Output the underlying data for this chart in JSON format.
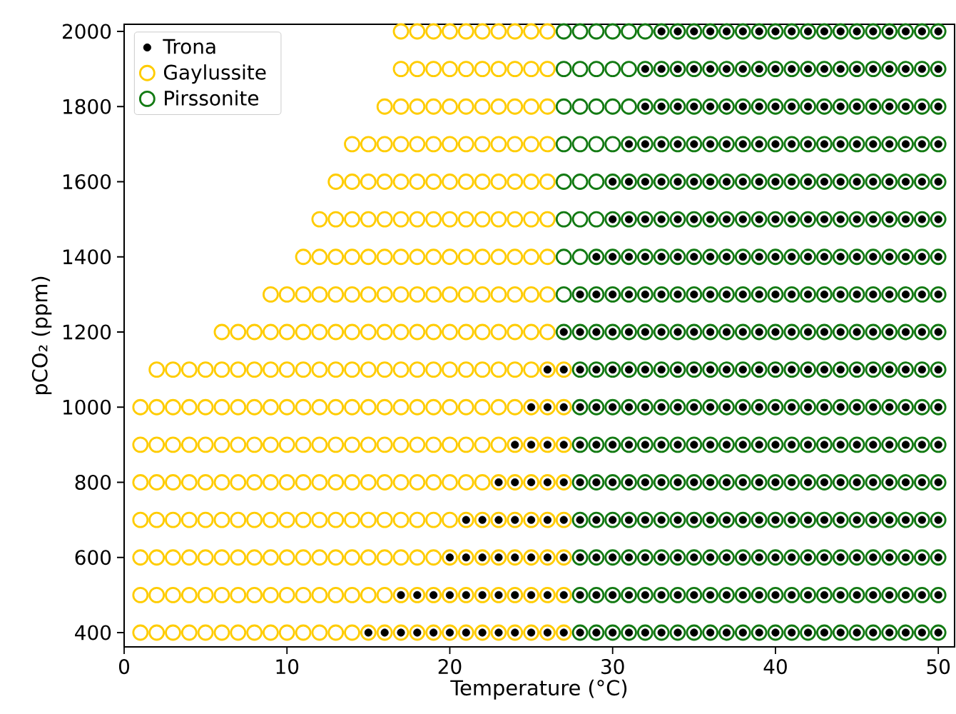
{
  "chart_data": {
    "type": "scatter",
    "xlabel": "Temperature (°C)",
    "ylabel": "pCO₂ (ppm)",
    "xlim": [
      0,
      51
    ],
    "ylim": [
      362,
      2019
    ],
    "xticks": [
      0,
      10,
      20,
      30,
      40,
      50
    ],
    "yticks": [
      400,
      600,
      800,
      1000,
      1200,
      1400,
      1600,
      1800,
      2000
    ],
    "legend": "top left",
    "marker": "circle",
    "series": [
      {
        "name": "Trona",
        "color": "#000000",
        "x": [
          15,
          16,
          17,
          18,
          19,
          20,
          21,
          22,
          23,
          24,
          25,
          26,
          27,
          28,
          29,
          30,
          31,
          32,
          33,
          34,
          35,
          36,
          37,
          38,
          39,
          40,
          41,
          42,
          43,
          44,
          45,
          46,
          47,
          48,
          49,
          50,
          17,
          18,
          19,
          20,
          21,
          22,
          23,
          24,
          25,
          26,
          27,
          28,
          29,
          30,
          31,
          32,
          33,
          34,
          35,
          36,
          37,
          38,
          39,
          40,
          41,
          42,
          43,
          44,
          45,
          46,
          47,
          48,
          49,
          50,
          20,
          21,
          22,
          23,
          24,
          25,
          26,
          27,
          28,
          29,
          30,
          31,
          32,
          33,
          34,
          35,
          36,
          37,
          38,
          39,
          40,
          41,
          42,
          43,
          44,
          45,
          46,
          47,
          48,
          49,
          50,
          21,
          22,
          23,
          24,
          25,
          26,
          27,
          28,
          29,
          30,
          31,
          32,
          33,
          34,
          35,
          36,
          37,
          38,
          39,
          40,
          41,
          42,
          43,
          44,
          45,
          46,
          47,
          48,
          49,
          50,
          23,
          24,
          25,
          26,
          27,
          28,
          29,
          30,
          31,
          32,
          33,
          34,
          35,
          36,
          37,
          38,
          39,
          40,
          41,
          42,
          43,
          44,
          45,
          46,
          47,
          48,
          49,
          50,
          24,
          25,
          26,
          27,
          28,
          29,
          30,
          31,
          32,
          33,
          34,
          35,
          36,
          37,
          38,
          39,
          40,
          41,
          42,
          43,
          44,
          45,
          46,
          47,
          48,
          49,
          50,
          25,
          26,
          27,
          28,
          29,
          30,
          31,
          32,
          33,
          34,
          35,
          36,
          37,
          38,
          39,
          40,
          41,
          42,
          43,
          44,
          45,
          46,
          47,
          48,
          49,
          50,
          26,
          27,
          28,
          29,
          30,
          31,
          32,
          33,
          34,
          35,
          36,
          37,
          38,
          39,
          40,
          41,
          42,
          43,
          44,
          45,
          46,
          47,
          48,
          49,
          50,
          27,
          28,
          29,
          30,
          31,
          32,
          33,
          34,
          35,
          36,
          37,
          38,
          39,
          40,
          41,
          42,
          43,
          44,
          45,
          46,
          47,
          48,
          49,
          50,
          28,
          29,
          30,
          31,
          32,
          33,
          34,
          35,
          36,
          37,
          38,
          39,
          40,
          41,
          42,
          43,
          44,
          45,
          46,
          47,
          48,
          49,
          50,
          29,
          30,
          31,
          32,
          33,
          34,
          35,
          36,
          37,
          38,
          39,
          40,
          41,
          42,
          43,
          44,
          45,
          46,
          47,
          48,
          49,
          50,
          30,
          31,
          32,
          33,
          34,
          35,
          36,
          37,
          38,
          39,
          40,
          41,
          42,
          43,
          44,
          45,
          46,
          47,
          48,
          49,
          50,
          30,
          31,
          32,
          33,
          34,
          35,
          36,
          37,
          38,
          39,
          40,
          41,
          42,
          43,
          44,
          45,
          46,
          47,
          48,
          49,
          50,
          31,
          32,
          33,
          34,
          35,
          36,
          37,
          38,
          39,
          40,
          41,
          42,
          43,
          44,
          45,
          46,
          47,
          48,
          49,
          50,
          32,
          33,
          34,
          35,
          36,
          37,
          38,
          39,
          40,
          41,
          42,
          43,
          44,
          45,
          46,
          47,
          48,
          49,
          50,
          32,
          33,
          34,
          35,
          36,
          37,
          38,
          39,
          40,
          41,
          42,
          43,
          44,
          45,
          46,
          47,
          48,
          49,
          50,
          33,
          34,
          35,
          36,
          37,
          38,
          39,
          40,
          41,
          42,
          43,
          44,
          45,
          46,
          47,
          48,
          49,
          50
        ],
        "values": [
          400,
          400,
          400,
          400,
          400,
          400,
          400,
          400,
          400,
          400,
          400,
          400,
          400,
          400,
          400,
          400,
          400,
          400,
          400,
          400,
          400,
          400,
          400,
          400,
          400,
          400,
          400,
          400,
          400,
          400,
          400,
          400,
          400,
          400,
          400,
          400,
          500,
          500,
          500,
          500,
          500,
          500,
          500,
          500,
          500,
          500,
          500,
          500,
          500,
          500,
          500,
          500,
          500,
          500,
          500,
          500,
          500,
          500,
          500,
          500,
          500,
          500,
          500,
          500,
          500,
          500,
          500,
          500,
          500,
          500,
          600,
          600,
          600,
          600,
          600,
          600,
          600,
          600,
          600,
          600,
          600,
          600,
          600,
          600,
          600,
          600,
          600,
          600,
          600,
          600,
          600,
          600,
          600,
          600,
          600,
          600,
          600,
          600,
          600,
          600,
          600,
          700,
          700,
          700,
          700,
          700,
          700,
          700,
          700,
          700,
          700,
          700,
          700,
          700,
          700,
          700,
          700,
          700,
          700,
          700,
          700,
          700,
          700,
          700,
          700,
          700,
          700,
          700,
          700,
          700,
          700,
          800,
          800,
          800,
          800,
          800,
          800,
          800,
          800,
          800,
          800,
          800,
          800,
          800,
          800,
          800,
          800,
          800,
          800,
          800,
          800,
          800,
          800,
          800,
          800,
          800,
          800,
          800,
          800,
          900,
          900,
          900,
          900,
          900,
          900,
          900,
          900,
          900,
          900,
          900,
          900,
          900,
          900,
          900,
          900,
          900,
          900,
          900,
          900,
          900,
          900,
          900,
          900,
          900,
          900,
          900,
          1000,
          1000,
          1000,
          1000,
          1000,
          1000,
          1000,
          1000,
          1000,
          1000,
          1000,
          1000,
          1000,
          1000,
          1000,
          1000,
          1000,
          1000,
          1000,
          1000,
          1000,
          1000,
          1000,
          1000,
          1000,
          1000,
          1100,
          1100,
          1100,
          1100,
          1100,
          1100,
          1100,
          1100,
          1100,
          1100,
          1100,
          1100,
          1100,
          1100,
          1100,
          1100,
          1100,
          1100,
          1100,
          1100,
          1100,
          1100,
          1100,
          1100,
          1100,
          1200,
          1200,
          1200,
          1200,
          1200,
          1200,
          1200,
          1200,
          1200,
          1200,
          1200,
          1200,
          1200,
          1200,
          1200,
          1200,
          1200,
          1200,
          1200,
          1200,
          1200,
          1200,
          1200,
          1200,
          1300,
          1300,
          1300,
          1300,
          1300,
          1300,
          1300,
          1300,
          1300,
          1300,
          1300,
          1300,
          1300,
          1300,
          1300,
          1300,
          1300,
          1300,
          1300,
          1300,
          1300,
          1300,
          1300,
          1400,
          1400,
          1400,
          1400,
          1400,
          1400,
          1400,
          1400,
          1400,
          1400,
          1400,
          1400,
          1400,
          1400,
          1400,
          1400,
          1400,
          1400,
          1400,
          1400,
          1400,
          1400,
          1500,
          1500,
          1500,
          1500,
          1500,
          1500,
          1500,
          1500,
          1500,
          1500,
          1500,
          1500,
          1500,
          1500,
          1500,
          1500,
          1500,
          1500,
          1500,
          1500,
          1500,
          1600,
          1600,
          1600,
          1600,
          1600,
          1600,
          1600,
          1600,
          1600,
          1600,
          1600,
          1600,
          1600,
          1600,
          1600,
          1600,
          1600,
          1600,
          1600,
          1600,
          1600,
          1700,
          1700,
          1700,
          1700,
          1700,
          1700,
          1700,
          1700,
          1700,
          1700,
          1700,
          1700,
          1700,
          1700,
          1700,
          1700,
          1700,
          1700,
          1700,
          1700,
          1800,
          1800,
          1800,
          1800,
          1800,
          1800,
          1800,
          1800,
          1800,
          1800,
          1800,
          1800,
          1800,
          1800,
          1800,
          1800,
          1800,
          1800,
          1800,
          1900,
          1900,
          1900,
          1900,
          1900,
          1900,
          1900,
          1900,
          1900,
          1900,
          1900,
          1900,
          1900,
          1900,
          1900,
          1900,
          1900,
          1900,
          1900,
          2000,
          2000,
          2000,
          2000,
          2000,
          2000,
          2000,
          2000,
          2000,
          2000,
          2000,
          2000,
          2000,
          2000,
          2000,
          2000,
          2000,
          2000
        ]
      },
      {
        "name": "Gaylussite",
        "color": "#ffcc00",
        "x": [
          1,
          2,
          3,
          4,
          5,
          6,
          7,
          8,
          9,
          10,
          11,
          12,
          13,
          14,
          15,
          16,
          17,
          18,
          19,
          20,
          21,
          22,
          23,
          24,
          25,
          26,
          27,
          1,
          2,
          3,
          4,
          5,
          6,
          7,
          8,
          9,
          10,
          11,
          12,
          13,
          14,
          15,
          16,
          17,
          18,
          19,
          20,
          21,
          22,
          23,
          24,
          25,
          26,
          27,
          1,
          2,
          3,
          4,
          5,
          6,
          7,
          8,
          9,
          10,
          11,
          12,
          13,
          14,
          15,
          16,
          17,
          18,
          19,
          20,
          21,
          22,
          23,
          24,
          25,
          26,
          27,
          1,
          2,
          3,
          4,
          5,
          6,
          7,
          8,
          9,
          10,
          11,
          12,
          13,
          14,
          15,
          16,
          17,
          18,
          19,
          20,
          21,
          22,
          23,
          24,
          25,
          26,
          27,
          1,
          2,
          3,
          4,
          5,
          6,
          7,
          8,
          9,
          10,
          11,
          12,
          13,
          14,
          15,
          16,
          17,
          18,
          19,
          20,
          21,
          22,
          23,
          24,
          25,
          26,
          27,
          1,
          2,
          3,
          4,
          5,
          6,
          7,
          8,
          9,
          10,
          11,
          12,
          13,
          14,
          15,
          16,
          17,
          18,
          19,
          20,
          21,
          22,
          23,
          24,
          25,
          26,
          27,
          1,
          2,
          3,
          4,
          5,
          6,
          7,
          8,
          9,
          10,
          11,
          12,
          13,
          14,
          15,
          16,
          17,
          18,
          19,
          20,
          21,
          22,
          23,
          24,
          25,
          26,
          27,
          2,
          3,
          4,
          5,
          6,
          7,
          8,
          9,
          10,
          11,
          12,
          13,
          14,
          15,
          16,
          17,
          18,
          19,
          20,
          21,
          22,
          23,
          24,
          25,
          26,
          27,
          6,
          7,
          8,
          9,
          10,
          11,
          12,
          13,
          14,
          15,
          16,
          17,
          18,
          19,
          20,
          21,
          22,
          23,
          24,
          25,
          26,
          9,
          10,
          11,
          12,
          13,
          14,
          15,
          16,
          17,
          18,
          19,
          20,
          21,
          22,
          23,
          24,
          25,
          26,
          11,
          12,
          13,
          14,
          15,
          16,
          17,
          18,
          19,
          20,
          21,
          22,
          23,
          24,
          25,
          26,
          12,
          13,
          14,
          15,
          16,
          17,
          18,
          19,
          20,
          21,
          22,
          23,
          24,
          25,
          26,
          13,
          14,
          15,
          16,
          17,
          18,
          19,
          20,
          21,
          22,
          23,
          24,
          25,
          26,
          14,
          15,
          16,
          17,
          18,
          19,
          20,
          21,
          22,
          23,
          24,
          25,
          26,
          16,
          17,
          18,
          19,
          20,
          21,
          22,
          23,
          24,
          25,
          26,
          17,
          18,
          19,
          20,
          21,
          22,
          23,
          24,
          25,
          26,
          17,
          18,
          19,
          20,
          21,
          22,
          23,
          24,
          25,
          26
        ],
        "values": [
          400,
          400,
          400,
          400,
          400,
          400,
          400,
          400,
          400,
          400,
          400,
          400,
          400,
          400,
          400,
          400,
          400,
          400,
          400,
          400,
          400,
          400,
          400,
          400,
          400,
          400,
          400,
          500,
          500,
          500,
          500,
          500,
          500,
          500,
          500,
          500,
          500,
          500,
          500,
          500,
          500,
          500,
          500,
          500,
          500,
          500,
          500,
          500,
          500,
          500,
          500,
          500,
          500,
          500,
          600,
          600,
          600,
          600,
          600,
          600,
          600,
          600,
          600,
          600,
          600,
          600,
          600,
          600,
          600,
          600,
          600,
          600,
          600,
          600,
          600,
          600,
          600,
          600,
          600,
          600,
          600,
          700,
          700,
          700,
          700,
          700,
          700,
          700,
          700,
          700,
          700,
          700,
          700,
          700,
          700,
          700,
          700,
          700,
          700,
          700,
          700,
          700,
          700,
          700,
          700,
          700,
          700,
          700,
          800,
          800,
          800,
          800,
          800,
          800,
          800,
          800,
          800,
          800,
          800,
          800,
          800,
          800,
          800,
          800,
          800,
          800,
          800,
          800,
          800,
          800,
          800,
          800,
          800,
          800,
          800,
          900,
          900,
          900,
          900,
          900,
          900,
          900,
          900,
          900,
          900,
          900,
          900,
          900,
          900,
          900,
          900,
          900,
          900,
          900,
          900,
          900,
          900,
          900,
          900,
          900,
          900,
          900,
          1000,
          1000,
          1000,
          1000,
          1000,
          1000,
          1000,
          1000,
          1000,
          1000,
          1000,
          1000,
          1000,
          1000,
          1000,
          1000,
          1000,
          1000,
          1000,
          1000,
          1000,
          1000,
          1000,
          1000,
          1000,
          1000,
          1000,
          1100,
          1100,
          1100,
          1100,
          1100,
          1100,
          1100,
          1100,
          1100,
          1100,
          1100,
          1100,
          1100,
          1100,
          1100,
          1100,
          1100,
          1100,
          1100,
          1100,
          1100,
          1100,
          1100,
          1100,
          1100,
          1100,
          1200,
          1200,
          1200,
          1200,
          1200,
          1200,
          1200,
          1200,
          1200,
          1200,
          1200,
          1200,
          1200,
          1200,
          1200,
          1200,
          1200,
          1200,
          1200,
          1200,
          1200,
          1300,
          1300,
          1300,
          1300,
          1300,
          1300,
          1300,
          1300,
          1300,
          1300,
          1300,
          1300,
          1300,
          1300,
          1300,
          1300,
          1300,
          1300,
          1400,
          1400,
          1400,
          1400,
          1400,
          1400,
          1400,
          1400,
          1400,
          1400,
          1400,
          1400,
          1400,
          1400,
          1400,
          1400,
          1500,
          1500,
          1500,
          1500,
          1500,
          1500,
          1500,
          1500,
          1500,
          1500,
          1500,
          1500,
          1500,
          1500,
          1500,
          1600,
          1600,
          1600,
          1600,
          1600,
          1600,
          1600,
          1600,
          1600,
          1600,
          1600,
          1600,
          1600,
          1600,
          1700,
          1700,
          1700,
          1700,
          1700,
          1700,
          1700,
          1700,
          1700,
          1700,
          1700,
          1700,
          1700,
          1800,
          1800,
          1800,
          1800,
          1800,
          1800,
          1800,
          1800,
          1800,
          1800,
          1800,
          1900,
          1900,
          1900,
          1900,
          1900,
          1900,
          1900,
          1900,
          1900,
          1900,
          2000,
          2000,
          2000,
          2000,
          2000,
          2000,
          2000,
          2000,
          2000,
          2000
        ]
      },
      {
        "name": "Pirssonite",
        "color": "#137a13",
        "x": [
          28,
          29,
          30,
          31,
          32,
          33,
          34,
          35,
          36,
          37,
          38,
          39,
          40,
          41,
          42,
          43,
          44,
          45,
          46,
          47,
          48,
          49,
          50,
          28,
          29,
          30,
          31,
          32,
          33,
          34,
          35,
          36,
          37,
          38,
          39,
          40,
          41,
          42,
          43,
          44,
          45,
          46,
          47,
          48,
          49,
          50,
          28,
          29,
          30,
          31,
          32,
          33,
          34,
          35,
          36,
          37,
          38,
          39,
          40,
          41,
          42,
          43,
          44,
          45,
          46,
          47,
          48,
          49,
          50,
          28,
          29,
          30,
          31,
          32,
          33,
          34,
          35,
          36,
          37,
          38,
          39,
          40,
          41,
          42,
          43,
          44,
          45,
          46,
          47,
          48,
          49,
          50,
          28,
          29,
          30,
          31,
          32,
          33,
          34,
          35,
          36,
          37,
          38,
          39,
          40,
          41,
          42,
          43,
          44,
          45,
          46,
          47,
          48,
          49,
          50,
          28,
          29,
          30,
          31,
          32,
          33,
          34,
          35,
          36,
          37,
          38,
          39,
          40,
          41,
          42,
          43,
          44,
          45,
          46,
          47,
          48,
          49,
          50,
          28,
          29,
          30,
          31,
          32,
          33,
          34,
          35,
          36,
          37,
          38,
          39,
          40,
          41,
          42,
          43,
          44,
          45,
          46,
          47,
          48,
          49,
          50,
          28,
          29,
          30,
          31,
          32,
          33,
          34,
          35,
          36,
          37,
          38,
          39,
          40,
          41,
          42,
          43,
          44,
          45,
          46,
          47,
          48,
          49,
          50,
          27,
          28,
          29,
          30,
          31,
          32,
          33,
          34,
          35,
          36,
          37,
          38,
          39,
          40,
          41,
          42,
          43,
          44,
          45,
          46,
          47,
          48,
          49,
          50,
          27,
          28,
          29,
          30,
          31,
          32,
          33,
          34,
          35,
          36,
          37,
          38,
          39,
          40,
          41,
          42,
          43,
          44,
          45,
          46,
          47,
          48,
          49,
          50,
          27,
          28,
          29,
          30,
          31,
          32,
          33,
          34,
          35,
          36,
          37,
          38,
          39,
          40,
          41,
          42,
          43,
          44,
          45,
          46,
          47,
          48,
          49,
          50,
          27,
          28,
          29,
          30,
          31,
          32,
          33,
          34,
          35,
          36,
          37,
          38,
          39,
          40,
          41,
          42,
          43,
          44,
          45,
          46,
          47,
          48,
          49,
          50,
          27,
          28,
          29,
          30,
          31,
          32,
          33,
          34,
          35,
          36,
          37,
          38,
          39,
          40,
          41,
          42,
          43,
          44,
          45,
          46,
          47,
          48,
          49,
          50,
          27,
          28,
          29,
          30,
          31,
          32,
          33,
          34,
          35,
          36,
          37,
          38,
          39,
          40,
          41,
          42,
          43,
          44,
          45,
          46,
          47,
          48,
          49,
          50,
          27,
          28,
          29,
          30,
          31,
          32,
          33,
          34,
          35,
          36,
          37,
          38,
          39,
          40,
          41,
          42,
          43,
          44,
          45,
          46,
          47,
          48,
          49,
          50,
          27,
          28,
          29,
          30,
          31,
          32,
          33,
          34,
          35,
          36,
          37,
          38,
          39,
          40,
          41,
          42,
          43,
          44,
          45,
          46,
          47,
          48,
          49,
          50,
          27,
          28,
          29,
          30,
          31,
          32,
          33,
          34,
          35,
          36,
          37,
          38,
          39,
          40,
          41,
          42,
          43,
          44,
          45,
          46,
          47,
          48,
          49,
          50
        ],
        "values": [
          400,
          400,
          400,
          400,
          400,
          400,
          400,
          400,
          400,
          400,
          400,
          400,
          400,
          400,
          400,
          400,
          400,
          400,
          400,
          400,
          400,
          400,
          400,
          500,
          500,
          500,
          500,
          500,
          500,
          500,
          500,
          500,
          500,
          500,
          500,
          500,
          500,
          500,
          500,
          500,
          500,
          500,
          500,
          500,
          500,
          500,
          600,
          600,
          600,
          600,
          600,
          600,
          600,
          600,
          600,
          600,
          600,
          600,
          600,
          600,
          600,
          600,
          600,
          600,
          600,
          600,
          600,
          600,
          600,
          700,
          700,
          700,
          700,
          700,
          700,
          700,
          700,
          700,
          700,
          700,
          700,
          700,
          700,
          700,
          700,
          700,
          700,
          700,
          700,
          700,
          700,
          700,
          800,
          800,
          800,
          800,
          800,
          800,
          800,
          800,
          800,
          800,
          800,
          800,
          800,
          800,
          800,
          800,
          800,
          800,
          800,
          800,
          800,
          800,
          800,
          900,
          900,
          900,
          900,
          900,
          900,
          900,
          900,
          900,
          900,
          900,
          900,
          900,
          900,
          900,
          900,
          900,
          900,
          900,
          900,
          900,
          900,
          900,
          1000,
          1000,
          1000,
          1000,
          1000,
          1000,
          1000,
          1000,
          1000,
          1000,
          1000,
          1000,
          1000,
          1000,
          1000,
          1000,
          1000,
          1000,
          1000,
          1000,
          1000,
          1000,
          1000,
          1100,
          1100,
          1100,
          1100,
          1100,
          1100,
          1100,
          1100,
          1100,
          1100,
          1100,
          1100,
          1100,
          1100,
          1100,
          1100,
          1100,
          1100,
          1100,
          1100,
          1100,
          1100,
          1100,
          1200,
          1200,
          1200,
          1200,
          1200,
          1200,
          1200,
          1200,
          1200,
          1200,
          1200,
          1200,
          1200,
          1200,
          1200,
          1200,
          1200,
          1200,
          1200,
          1200,
          1200,
          1200,
          1200,
          1200,
          1300,
          1300,
          1300,
          1300,
          1300,
          1300,
          1300,
          1300,
          1300,
          1300,
          1300,
          1300,
          1300,
          1300,
          1300,
          1300,
          1300,
          1300,
          1300,
          1300,
          1300,
          1300,
          1300,
          1300,
          1400,
          1400,
          1400,
          1400,
          1400,
          1400,
          1400,
          1400,
          1400,
          1400,
          1400,
          1400,
          1400,
          1400,
          1400,
          1400,
          1400,
          1400,
          1400,
          1400,
          1400,
          1400,
          1400,
          1400,
          1500,
          1500,
          1500,
          1500,
          1500,
          1500,
          1500,
          1500,
          1500,
          1500,
          1500,
          1500,
          1500,
          1500,
          1500,
          1500,
          1500,
          1500,
          1500,
          1500,
          1500,
          1500,
          1500,
          1500,
          1600,
          1600,
          1600,
          1600,
          1600,
          1600,
          1600,
          1600,
          1600,
          1600,
          1600,
          1600,
          1600,
          1600,
          1600,
          1600,
          1600,
          1600,
          1600,
          1600,
          1600,
          1600,
          1600,
          1600,
          1700,
          1700,
          1700,
          1700,
          1700,
          1700,
          1700,
          1700,
          1700,
          1700,
          1700,
          1700,
          1700,
          1700,
          1700,
          1700,
          1700,
          1700,
          1700,
          1700,
          1700,
          1700,
          1700,
          1700,
          1800,
          1800,
          1800,
          1800,
          1800,
          1800,
          1800,
          1800,
          1800,
          1800,
          1800,
          1800,
          1800,
          1800,
          1800,
          1800,
          1800,
          1800,
          1800,
          1800,
          1800,
          1800,
          1800,
          1800,
          1900,
          1900,
          1900,
          1900,
          1900,
          1900,
          1900,
          1900,
          1900,
          1900,
          1900,
          1900,
          1900,
          1900,
          1900,
          1900,
          1900,
          1900,
          1900,
          1900,
          1900,
          1900,
          1900,
          1900,
          2000,
          2000,
          2000,
          2000,
          2000,
          2000,
          2000,
          2000,
          2000,
          2000,
          2000,
          2000,
          2000,
          2000,
          2000,
          2000,
          2000,
          2000,
          2000,
          2000,
          2000,
          2000,
          2000,
          2000
        ]
      }
    ]
  }
}
